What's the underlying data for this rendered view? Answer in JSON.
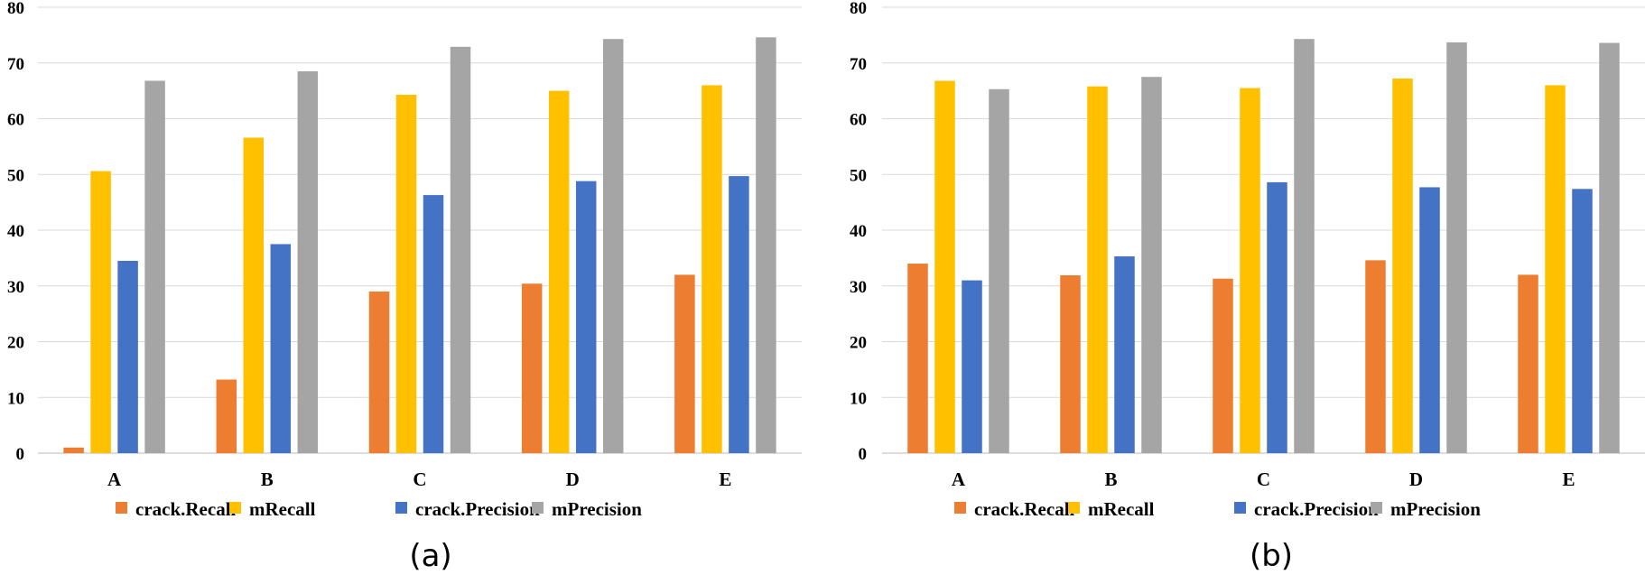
{
  "colors": {
    "crack_recall": "#ED7D31",
    "mrecall": "#FFC000",
    "crack_precision": "#4472C4",
    "mprecision": "#A5A5A5"
  },
  "chart_data": [
    {
      "type": "bar",
      "caption": "(a)",
      "categories": [
        "A",
        "B",
        "C",
        "D",
        "E"
      ],
      "ylim": [
        0,
        80
      ],
      "yticks": [
        0,
        10,
        20,
        30,
        40,
        50,
        60,
        70,
        80
      ],
      "grid": true,
      "legend_position": "bottom",
      "series": [
        {
          "name": "crack.Recall",
          "color_key": "crack_recall",
          "values": [
            1.0,
            13.2,
            29.0,
            30.4,
            32.0
          ]
        },
        {
          "name": "mRecall",
          "color_key": "mrecall",
          "values": [
            50.6,
            56.6,
            64.3,
            65.0,
            66.0
          ]
        },
        {
          "name": "crack.Precision",
          "color_key": "crack_precision",
          "values": [
            34.5,
            37.5,
            46.3,
            48.8,
            49.7
          ]
        },
        {
          "name": "mPrecision",
          "color_key": "mprecision",
          "values": [
            66.8,
            68.5,
            72.9,
            74.3,
            74.6
          ]
        }
      ]
    },
    {
      "type": "bar",
      "caption": "(b)",
      "categories": [
        "A",
        "B",
        "C",
        "D",
        "E"
      ],
      "ylim": [
        0,
        80
      ],
      "yticks": [
        0,
        10,
        20,
        30,
        40,
        50,
        60,
        70,
        80
      ],
      "grid": true,
      "legend_position": "bottom",
      "series": [
        {
          "name": "crack.Recall",
          "color_key": "crack_recall",
          "values": [
            34.0,
            31.9,
            31.3,
            34.6,
            32.0
          ]
        },
        {
          "name": "mRecall",
          "color_key": "mrecall",
          "values": [
            66.8,
            65.8,
            65.5,
            67.2,
            66.0
          ]
        },
        {
          "name": "crack.Precision",
          "color_key": "crack_precision",
          "values": [
            31.0,
            35.3,
            48.6,
            47.7,
            47.4
          ]
        },
        {
          "name": "mPrecision",
          "color_key": "mprecision",
          "values": [
            65.3,
            67.5,
            74.3,
            73.7,
            73.6
          ]
        }
      ]
    }
  ]
}
